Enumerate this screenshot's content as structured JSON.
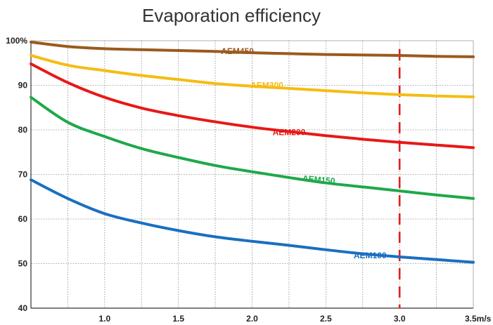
{
  "chart_data": {
    "type": "line",
    "title": "Evaporation efficiency",
    "xlabel": "",
    "ylabel": "",
    "xlim": [
      0.5,
      3.5
    ],
    "ylim": [
      40,
      100
    ],
    "grid": true,
    "x_ticks": [
      {
        "value": 1.0,
        "label": "1.0"
      },
      {
        "value": 1.5,
        "label": "1.5"
      },
      {
        "value": 2.0,
        "label": "2.0"
      },
      {
        "value": 2.5,
        "label": "2.5"
      },
      {
        "value": 3.0,
        "label": "3.0"
      },
      {
        "value": 3.5,
        "label": "3.5m/s"
      }
    ],
    "y_ticks": [
      {
        "value": 40,
        "label": "40"
      },
      {
        "value": 50,
        "label": "50"
      },
      {
        "value": 60,
        "label": "60"
      },
      {
        "value": 70,
        "label": "70"
      },
      {
        "value": 80,
        "label": "80"
      },
      {
        "value": 90,
        "label": "90"
      },
      {
        "value": 100,
        "label": "100%"
      }
    ],
    "reference_line": {
      "x": 3.0,
      "color": "#e02020",
      "style": "dashed"
    },
    "series": [
      {
        "name": "AEM450",
        "color": "#9a5a1e",
        "label_at": [
          1.9,
          97.0
        ],
        "label_angle": 0,
        "x": [
          0.5,
          0.75,
          1.0,
          1.25,
          1.5,
          1.75,
          2.0,
          2.25,
          2.5,
          2.75,
          3.0,
          3.25,
          3.5
        ],
        "y": [
          99.7,
          98.7,
          98.2,
          98.0,
          97.8,
          97.6,
          97.3,
          97.1,
          96.9,
          96.8,
          96.7,
          96.5,
          96.4
        ]
      },
      {
        "name": "AEM300",
        "color": "#f5bc12",
        "label_at": [
          2.1,
          89.4
        ],
        "label_angle": 0,
        "x": [
          0.5,
          0.75,
          1.0,
          1.25,
          1.5,
          1.75,
          2.0,
          2.25,
          2.5,
          2.75,
          3.0,
          3.25,
          3.5
        ],
        "y": [
          96.7,
          94.5,
          93.3,
          92.2,
          91.3,
          90.4,
          89.8,
          89.3,
          88.8,
          88.3,
          87.9,
          87.6,
          87.4
        ]
      },
      {
        "name": "AEM200",
        "color": "#e81818",
        "label_at": [
          2.25,
          78.8
        ],
        "label_angle": 0,
        "x": [
          0.5,
          0.75,
          1.0,
          1.25,
          1.5,
          1.75,
          2.0,
          2.25,
          2.5,
          2.75,
          3.0,
          3.25,
          3.5
        ],
        "y": [
          94.8,
          90.6,
          87.3,
          84.9,
          83.2,
          81.8,
          80.6,
          79.6,
          78.7,
          77.9,
          77.2,
          76.6,
          76.0
        ]
      },
      {
        "name": "AEM150",
        "color": "#1fa84a",
        "label_at": [
          2.45,
          68.2
        ],
        "label_angle": 5,
        "x": [
          0.5,
          0.75,
          1.0,
          1.25,
          1.5,
          1.75,
          2.0,
          2.25,
          2.5,
          2.75,
          3.0,
          3.25,
          3.5
        ],
        "y": [
          87.3,
          81.7,
          78.5,
          75.8,
          73.8,
          72.0,
          70.6,
          69.3,
          68.1,
          67.2,
          66.3,
          65.4,
          64.6
        ]
      },
      {
        "name": "AEM100",
        "color": "#1a6fc0",
        "label_at": [
          2.8,
          51.2
        ],
        "label_angle": 0,
        "x": [
          0.5,
          0.75,
          1.0,
          1.25,
          1.5,
          1.75,
          2.0,
          2.25,
          2.5,
          2.75,
          3.0,
          3.25,
          3.5
        ],
        "y": [
          68.8,
          64.6,
          61.2,
          59.1,
          57.4,
          56.0,
          55.0,
          54.1,
          53.1,
          52.2,
          51.5,
          50.9,
          50.3
        ]
      }
    ]
  }
}
